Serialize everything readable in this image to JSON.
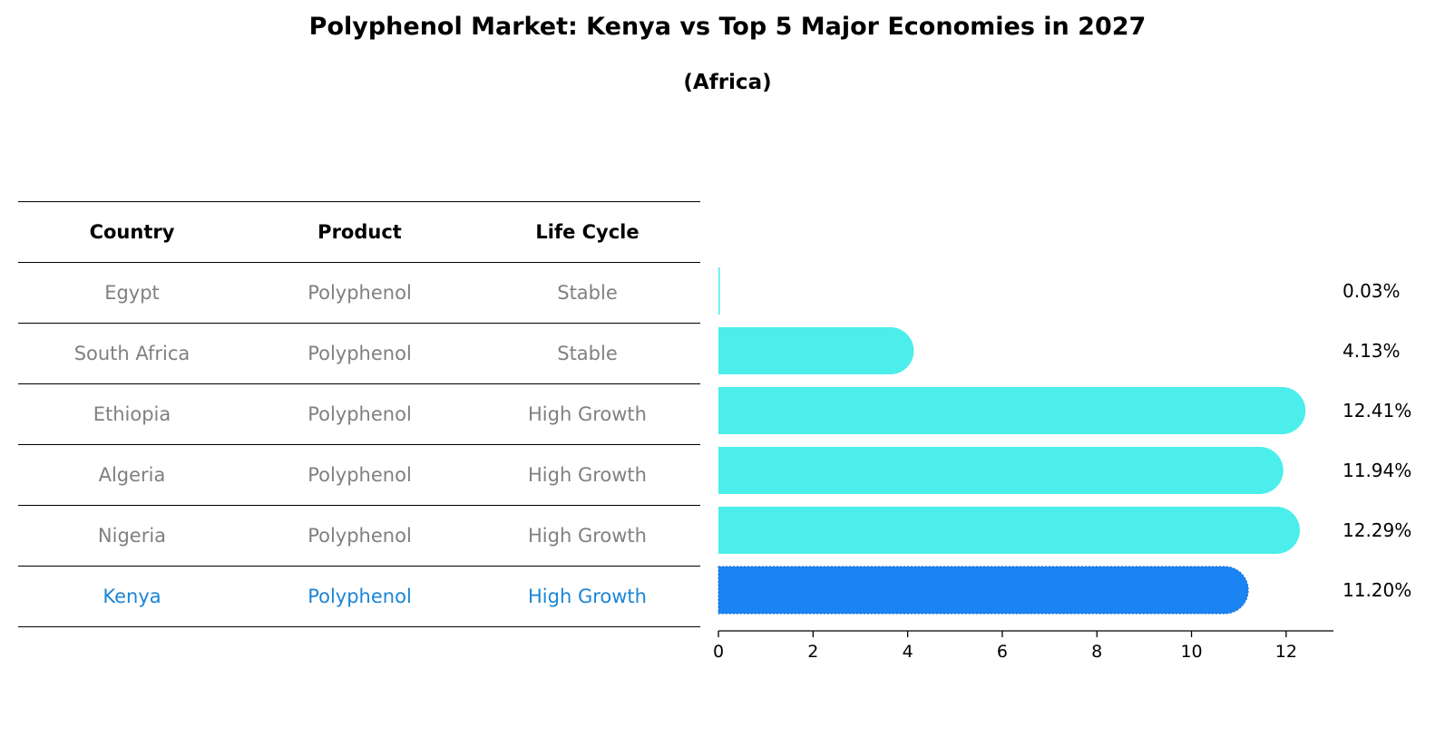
{
  "title": "Polyphenol Market: Kenya vs Top 5 Major Economies in 2027",
  "subtitle": "(Africa)",
  "table": {
    "headers": [
      "Country",
      "Product",
      "Life Cycle"
    ],
    "rows": [
      [
        "Egypt",
        "Polyphenol",
        "Stable"
      ],
      [
        "South Africa",
        "Polyphenol",
        "Stable"
      ],
      [
        "Ethiopia",
        "Polyphenol",
        "High Growth"
      ],
      [
        "Algeria",
        "Polyphenol",
        "High Growth"
      ],
      [
        "Nigeria",
        "Polyphenol",
        "High Growth"
      ],
      [
        "Kenya",
        "Polyphenol",
        "High Growth"
      ]
    ]
  },
  "colors": {
    "bar": "#4beeea",
    "highlight": "#1a84f2",
    "highlight_text": "#1b85d6",
    "muted_text": "#808080"
  },
  "chart_data": {
    "type": "bar",
    "orientation": "horizontal",
    "categories": [
      "Egypt",
      "South Africa",
      "Ethiopia",
      "Algeria",
      "Nigeria",
      "Kenya"
    ],
    "values": [
      0.03,
      4.13,
      12.41,
      11.94,
      12.29,
      11.2
    ],
    "value_labels": [
      "0.03%",
      "4.13%",
      "12.41%",
      "11.94%",
      "12.29%",
      "11.20%"
    ],
    "highlight": "Kenya",
    "xlim": [
      0,
      13
    ],
    "xticks": [
      0,
      2,
      4,
      6,
      8,
      10,
      12
    ],
    "title": "Polyphenol Market: Kenya vs Top 5 Major Economies in 2027",
    "xlabel": "",
    "ylabel": ""
  }
}
